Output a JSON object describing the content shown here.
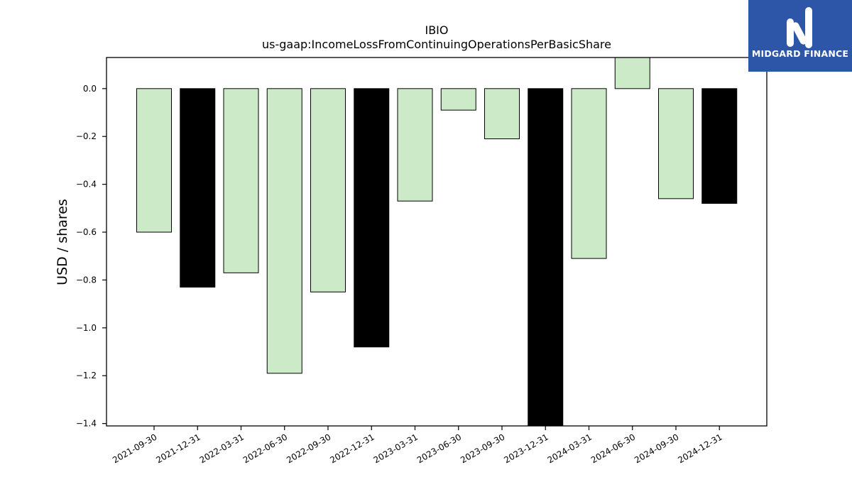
{
  "chart_data": {
    "type": "bar",
    "title": "IBIO",
    "subtitle": "us-gaap:IncomeLossFromContinuingOperationsPerBasicShare",
    "xlabel": "",
    "ylabel": "USD / shares",
    "categories": [
      "2021-09-30",
      "2021-12-31",
      "2022-03-31",
      "2022-06-30",
      "2022-09-30",
      "2022-12-31",
      "2023-03-31",
      "2023-06-30",
      "2023-09-30",
      "2023-12-31",
      "2024-03-31",
      "2024-06-30",
      "2024-09-30",
      "2024-12-31"
    ],
    "values": [
      -0.6,
      -0.83,
      -0.77,
      -1.19,
      -0.85,
      -1.08,
      -0.47,
      -0.09,
      -0.21,
      -1.43,
      -0.71,
      0.15,
      -0.46,
      -0.48
    ],
    "period_type": [
      "quarter",
      "annual",
      "quarter",
      "quarter",
      "quarter",
      "annual",
      "quarter",
      "quarter",
      "quarter",
      "annual",
      "quarter",
      "quarter",
      "quarter",
      "annual"
    ],
    "ylim": [
      -1.41,
      0.13
    ],
    "yticks": [
      "0.0",
      "−0.2",
      "−0.4",
      "−0.6",
      "−0.8",
      "−1.0",
      "−1.2",
      "−1.4"
    ],
    "ytick_values": [
      0.0,
      -0.2,
      -0.4,
      -0.6,
      -0.8,
      -1.0,
      -1.2,
      -1.4
    ],
    "grid": false,
    "colors": {
      "quarter": "#cdeac8",
      "annual": "#000000",
      "edge": "#000000"
    }
  },
  "branding": {
    "logo_text": "MIDGARD FINANCE",
    "logo_color": "#2e56a8"
  }
}
